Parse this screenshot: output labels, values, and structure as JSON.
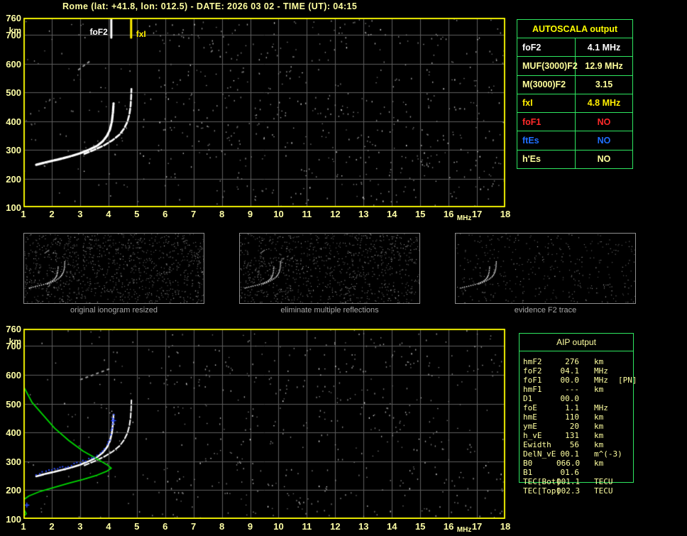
{
  "header": {
    "title": "Rome (lat: +41.8, lon: 012.5) - DATE: 2026 03 02 - TIME (UT): 04:15"
  },
  "autoscala": {
    "title": "AUTOSCALA output",
    "rows": [
      {
        "label": "foF2",
        "value": "4.1 MHz",
        "color": "#ffffff"
      },
      {
        "label": "MUF(3000)F2",
        "value": "12.9 MHz",
        "color": "#ffff9c"
      },
      {
        "label": "M(3000)F2",
        "value": "3.15",
        "color": "#ffff9c"
      },
      {
        "label": "fxI",
        "value": "4.8 MHz",
        "color": "#ffee00"
      },
      {
        "label": "foF1",
        "value": "NO",
        "color": "#ff2a2a"
      },
      {
        "label": "ftEs",
        "value": "NO",
        "color": "#1f6fff"
      },
      {
        "label": "h'Es",
        "value": "NO",
        "color": "#ffff9c"
      }
    ]
  },
  "aip": {
    "title": "AIP output",
    "rows": [
      {
        "label": "hmF2",
        "value": "276",
        "unit": "km",
        "extra": ""
      },
      {
        "label": "foF2",
        "value": "04.1",
        "unit": "MHz",
        "extra": ""
      },
      {
        "label": "foF1",
        "value": "00.0",
        "unit": "MHz",
        "extra": "[PN]"
      },
      {
        "label": "hmF1",
        "value": "---",
        "unit": "km",
        "extra": ""
      },
      {
        "label": "D1",
        "value": "00.0",
        "unit": "",
        "extra": ""
      },
      {
        "label": "foE",
        "value": "1.1",
        "unit": "MHz",
        "extra": ""
      },
      {
        "label": "hmE",
        "value": "110",
        "unit": "km",
        "extra": ""
      },
      {
        "label": "ymE",
        "value": "20",
        "unit": "km",
        "extra": ""
      },
      {
        "label": "h_vE",
        "value": "131",
        "unit": "km",
        "extra": ""
      },
      {
        "label": "Ewidth",
        "value": "56",
        "unit": "km",
        "extra": ""
      },
      {
        "label": "DelN_vE",
        "value": "00.1",
        "unit": "m^(-3)",
        "extra": ""
      },
      {
        "label": "B0",
        "value": "066.0",
        "unit": "km",
        "extra": ""
      },
      {
        "label": "B1",
        "value": "01.6",
        "unit": "",
        "extra": ""
      },
      {
        "label": "TEC[Bot]",
        "value": "001.1",
        "unit": "TECU",
        "extra": ""
      },
      {
        "label": "TEC[Top]",
        "value": "002.3",
        "unit": "TECU",
        "extra": ""
      }
    ]
  },
  "thumbnails": {
    "captions": [
      "original ionogram resized",
      "eliminate multiple reflections",
      "evidence F2 trace"
    ]
  },
  "colors": {
    "axis_text": "#ffffa6",
    "plot_border": "#eaea00",
    "grid": "#5e5e5e",
    "trace": "#ffffff",
    "profile_green": "#00d800",
    "fitted_blue": "#2b4bff",
    "table_border_green": "#2ee660",
    "caption_gray": "#a8a8a8"
  },
  "chart_data": [
    {
      "id": "ionogram-top",
      "type": "scatter",
      "title": "",
      "xlabel": "MHz",
      "ylabel": "km",
      "xlim": [
        1,
        18
      ],
      "ylim": [
        100,
        760
      ],
      "xticks": [
        1,
        2,
        3,
        4,
        5,
        6,
        7,
        8,
        9,
        10,
        11,
        12,
        13,
        14,
        15,
        16,
        17,
        18
      ],
      "yticks": [
        760,
        700,
        600,
        500,
        400,
        300,
        200,
        100
      ],
      "grid": true,
      "annotations": [
        {
          "label": "foF2",
          "freq_mhz": 4.1,
          "color": "#ffffff"
        },
        {
          "label": "fxI",
          "freq_mhz": 4.8,
          "color": "#ffee00"
        }
      ],
      "series": [
        {
          "name": "F2-trace-ordinary",
          "color": "#ffffff",
          "points": [
            [
              1.45,
              248
            ],
            [
              1.8,
              257
            ],
            [
              2.2,
              266
            ],
            [
              2.6,
              276
            ],
            [
              3.0,
              288
            ],
            [
              3.3,
              300
            ],
            [
              3.6,
              314
            ],
            [
              3.8,
              330
            ],
            [
              3.95,
              349
            ],
            [
              4.05,
              370
            ],
            [
              4.12,
              398
            ],
            [
              4.16,
              432
            ],
            [
              4.18,
              462
            ]
          ]
        },
        {
          "name": "F2-trace-extraordinary",
          "color": "#ffffff",
          "points": [
            [
              3.15,
              286
            ],
            [
              3.5,
              300
            ],
            [
              3.85,
              316
            ],
            [
              4.15,
              334
            ],
            [
              4.4,
              354
            ],
            [
              4.55,
              374
            ],
            [
              4.67,
              398
            ],
            [
              4.74,
              424
            ],
            [
              4.78,
              452
            ],
            [
              4.8,
              482
            ],
            [
              4.81,
              512
            ]
          ]
        }
      ],
      "echo_streaks": [
        {
          "points": [
            [
              2.93,
              578
            ],
            [
              3.36,
              610
            ]
          ]
        }
      ],
      "noise": {
        "seed": 101,
        "count": 820
      }
    },
    {
      "id": "ionogram-bottom",
      "type": "scatter",
      "title": "",
      "xlabel": "MHz",
      "ylabel": "km",
      "xlim": [
        1,
        18
      ],
      "ylim": [
        100,
        760
      ],
      "xticks": [
        1,
        2,
        3,
        4,
        5,
        6,
        7,
        8,
        9,
        10,
        11,
        12,
        13,
        14,
        15,
        16,
        17,
        18
      ],
      "yticks": [
        760,
        700,
        600,
        500,
        400,
        300,
        200,
        100
      ],
      "grid": true,
      "annotations": [],
      "series": [
        {
          "name": "F2-trace-ordinary-restored",
          "color": "#ffffff",
          "points": [
            [
              1.45,
              248
            ],
            [
              1.8,
              257
            ],
            [
              2.2,
              266
            ],
            [
              2.6,
              276
            ],
            [
              3.0,
              288
            ],
            [
              3.3,
              300
            ],
            [
              3.6,
              314
            ],
            [
              3.8,
              330
            ],
            [
              3.95,
              349
            ],
            [
              4.05,
              370
            ],
            [
              4.12,
              398
            ],
            [
              4.16,
              432
            ],
            [
              4.18,
              462
            ]
          ]
        },
        {
          "name": "F2-trace-extraordinary-restored",
          "color": "#ffffff",
          "points": [
            [
              3.15,
              286
            ],
            [
              3.5,
              300
            ],
            [
              3.85,
              316
            ],
            [
              4.15,
              334
            ],
            [
              4.4,
              354
            ],
            [
              4.55,
              374
            ],
            [
              4.67,
              398
            ],
            [
              4.74,
              424
            ],
            [
              4.78,
              452
            ],
            [
              4.8,
              482
            ],
            [
              4.81,
              512
            ]
          ]
        }
      ],
      "profile": {
        "name": "electron-density-profile",
        "color": "#00d800",
        "points": [
          [
            1.0,
            560
          ],
          [
            1.3,
            505
          ],
          [
            1.7,
            460
          ],
          [
            2.1,
            415
          ],
          [
            2.6,
            372
          ],
          [
            3.1,
            336
          ],
          [
            3.6,
            308
          ],
          [
            3.95,
            288
          ],
          [
            4.1,
            276
          ],
          [
            3.95,
            266
          ],
          [
            3.6,
            252
          ],
          [
            3.1,
            237
          ],
          [
            2.6,
            224
          ],
          [
            2.1,
            210
          ],
          [
            1.6,
            196
          ],
          [
            1.2,
            180
          ],
          [
            1.02,
            168
          ],
          [
            1.0,
            140
          ],
          [
            1.03,
            131
          ],
          [
            1.1,
            118
          ],
          [
            1.04,
            112
          ],
          [
            1.0,
            110
          ]
        ]
      },
      "fitted": {
        "name": "autoscala-fitted-trace",
        "color": "#2b4bff",
        "plus_markers": [
          [
            4.18,
            441
          ],
          [
            1.12,
            148
          ]
        ]
      },
      "echo_streaks": [
        {
          "points": [
            [
              3.0,
              583
            ],
            [
              4.1,
              623
            ]
          ]
        }
      ],
      "noise": {
        "seed": 202,
        "count": 700
      }
    }
  ]
}
